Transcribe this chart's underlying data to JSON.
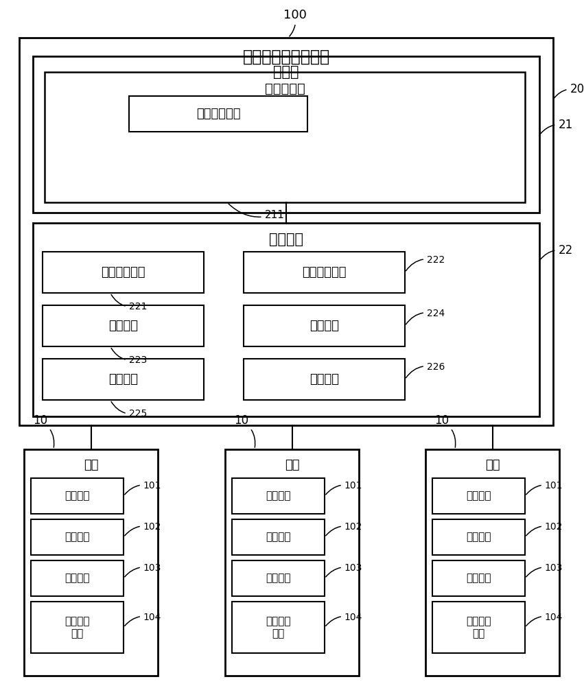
{
  "bg_color": "#ffffff",
  "label_100": "100",
  "label_20": "20",
  "label_21": "21",
  "label_22": "22",
  "title": "终端数据传输的系统",
  "server_label": "服务器",
  "app_server_label": "应用服务器",
  "app_server_id": "211",
  "second_recv_label": "第二接收模块",
  "cloud_server_label": "云服务器",
  "mod_221": "第一接收模块",
  "mod_222": "第一传送模块",
  "mod_223": "获取模块",
  "mod_224": "识别模块",
  "mod_225": "划分模块",
  "mod_226": "分配模块",
  "id_221": "221",
  "id_222": "222",
  "id_223": "223",
  "id_224": "224",
  "id_225": "225",
  "id_226": "226",
  "terminal_label": "终端",
  "terminal_id": "10",
  "t_mod_101": "合成模块",
  "t_mod_102": "下载模块",
  "t_mod_103": "请求模块",
  "t_mod_104": "第二传送\n模块",
  "t_id_101": "101",
  "t_id_102": "102",
  "t_id_103": "103",
  "t_id_104": "104"
}
